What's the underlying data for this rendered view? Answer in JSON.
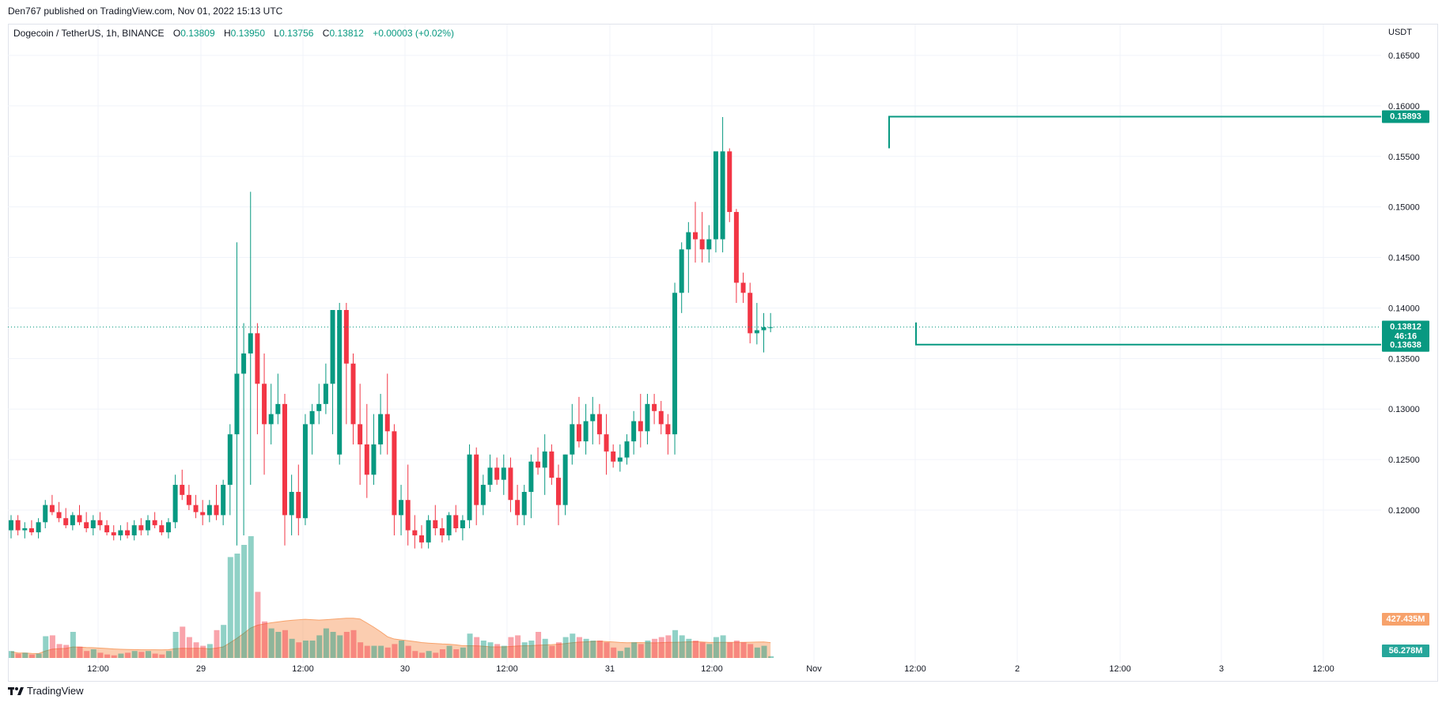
{
  "header": {
    "publisher": "Den767 published on TradingView.com, Nov 01, 2022 15:13 UTC"
  },
  "legend": {
    "symbol": "Dogecoin / TetherUS, 1h, BINANCE",
    "o_label": "O",
    "o": "0.13809",
    "h_label": "H",
    "h": "0.13950",
    "l_label": "L",
    "l": "0.13756",
    "c_label": "C",
    "c": "0.13812",
    "change": "+0.00003 (+0.02%)"
  },
  "axis": {
    "currency": "USDT",
    "price_ticks": [
      "0.16500",
      "0.16000",
      "0.15500",
      "0.15000",
      "0.14500",
      "0.14000",
      "0.13500",
      "0.13000",
      "0.12500",
      "0.12000"
    ],
    "time_ticks": [
      "12:00",
      "29",
      "12:00",
      "30",
      "12:00",
      "31",
      "12:00",
      "Nov",
      "12:00",
      "2",
      "12:00",
      "3",
      "12:00"
    ]
  },
  "badges": {
    "resistance": "0.15893",
    "current_price": "0.13812",
    "countdown": "46:16",
    "support": "0.13638",
    "volume_ma": "427.435M",
    "volume": "56.278M"
  },
  "footer": {
    "brand": "TradingView"
  },
  "colors": {
    "up": "#089981",
    "down": "#f23645",
    "volume_ma": "#f7c9a6",
    "line": "#089981",
    "grid": "#f0f3fa"
  },
  "chart_data": {
    "type": "candlestick",
    "timeframe": "1h",
    "ylim": [
      0.119,
      0.1685
    ],
    "levels": [
      {
        "name": "resistance",
        "value": 0.15893
      },
      {
        "name": "support",
        "value": 0.13638
      }
    ],
    "current_price": 0.13812,
    "candles_ohlc_volume_m": [
      [
        0.118,
        0.1195,
        0.1172,
        0.119,
        40
      ],
      [
        0.119,
        0.1195,
        0.1175,
        0.118,
        25
      ],
      [
        0.118,
        0.1188,
        0.1172,
        0.1182,
        30
      ],
      [
        0.1182,
        0.119,
        0.1175,
        0.1178,
        20
      ],
      [
        0.1178,
        0.1192,
        0.1172,
        0.1188,
        25
      ],
      [
        0.1188,
        0.121,
        0.1182,
        0.1205,
        125
      ],
      [
        0.1205,
        0.1215,
        0.1195,
        0.1198,
        130
      ],
      [
        0.1198,
        0.1208,
        0.1188,
        0.1192,
        80
      ],
      [
        0.1192,
        0.1202,
        0.1182,
        0.1185,
        75
      ],
      [
        0.1185,
        0.1198,
        0.118,
        0.1195,
        150
      ],
      [
        0.1195,
        0.1205,
        0.1185,
        0.1188,
        65
      ],
      [
        0.1188,
        0.1198,
        0.1178,
        0.1182,
        40
      ],
      [
        0.1182,
        0.1195,
        0.1175,
        0.119,
        50
      ],
      [
        0.119,
        0.1198,
        0.118,
        0.1185,
        30
      ],
      [
        0.1185,
        0.119,
        0.1175,
        0.1178,
        20
      ],
      [
        0.1178,
        0.1185,
        0.117,
        0.1175,
        15
      ],
      [
        0.1175,
        0.1185,
        0.117,
        0.118,
        25
      ],
      [
        0.118,
        0.1188,
        0.1172,
        0.1175,
        30
      ],
      [
        0.1175,
        0.119,
        0.117,
        0.1185,
        40
      ],
      [
        0.1185,
        0.1192,
        0.1175,
        0.118,
        35
      ],
      [
        0.118,
        0.1195,
        0.1175,
        0.119,
        40
      ],
      [
        0.119,
        0.1198,
        0.1182,
        0.1185,
        25
      ],
      [
        0.1185,
        0.119,
        0.1175,
        0.1178,
        20
      ],
      [
        0.1178,
        0.1192,
        0.1172,
        0.1188,
        40
      ],
      [
        0.1188,
        0.1235,
        0.1182,
        0.1225,
        150
      ],
      [
        0.1225,
        0.124,
        0.121,
        0.1215,
        180
      ],
      [
        0.1215,
        0.1225,
        0.12,
        0.1205,
        120
      ],
      [
        0.1205,
        0.1215,
        0.1192,
        0.1198,
        90
      ],
      [
        0.1198,
        0.121,
        0.1185,
        0.1195,
        70
      ],
      [
        0.1195,
        0.121,
        0.1188,
        0.1205,
        80
      ],
      [
        0.1205,
        0.1225,
        0.119,
        0.1195,
        160
      ],
      [
        0.1195,
        0.123,
        0.1185,
        0.1225,
        190
      ],
      [
        0.1225,
        0.1285,
        0.1195,
        0.1275,
        580
      ],
      [
        0.1275,
        0.1465,
        0.1165,
        0.1335,
        600
      ],
      [
        0.1335,
        0.1385,
        0.1175,
        0.1355,
        650
      ],
      [
        0.1355,
        0.1515,
        0.1225,
        0.1375,
        700
      ],
      [
        0.1375,
        0.1385,
        0.1275,
        0.1325,
        380
      ],
      [
        0.1325,
        0.1355,
        0.1235,
        0.1285,
        210
      ],
      [
        0.1285,
        0.1325,
        0.1265,
        0.1295,
        170
      ],
      [
        0.1295,
        0.1335,
        0.1285,
        0.1305,
        150
      ],
      [
        0.1305,
        0.1315,
        0.1165,
        0.1195,
        160
      ],
      [
        0.1195,
        0.1235,
        0.1175,
        0.1218,
        110
      ],
      [
        0.1218,
        0.1245,
        0.1175,
        0.1192,
        90
      ],
      [
        0.1192,
        0.1295,
        0.1185,
        0.1285,
        100
      ],
      [
        0.1285,
        0.1305,
        0.1255,
        0.1298,
        100
      ],
      [
        0.1298,
        0.1325,
        0.1285,
        0.1305,
        130
      ],
      [
        0.1305,
        0.1345,
        0.1295,
        0.1325,
        170
      ],
      [
        0.1325,
        0.1375,
        0.1275,
        0.1398,
        150
      ],
      [
        0.1255,
        0.1405,
        0.1245,
        0.1398,
        130
      ],
      [
        0.1398,
        0.1405,
        0.1285,
        0.1345,
        150
      ],
      [
        0.1345,
        0.1355,
        0.1265,
        0.1285,
        160
      ],
      [
        0.1285,
        0.1325,
        0.1225,
        0.1265,
        90
      ],
      [
        0.1265,
        0.1305,
        0.1212,
        0.1235,
        70
      ],
      [
        0.1235,
        0.1295,
        0.1225,
        0.1265,
        70
      ],
      [
        0.1265,
        0.1315,
        0.1255,
        0.1295,
        70
      ],
      [
        0.1295,
        0.1335,
        0.1255,
        0.1278,
        60
      ],
      [
        0.1278,
        0.1285,
        0.1175,
        0.1195,
        80
      ],
      [
        0.1195,
        0.1225,
        0.1175,
        0.121,
        100
      ],
      [
        0.121,
        0.1245,
        0.1165,
        0.118,
        70
      ],
      [
        0.118,
        0.1195,
        0.1162,
        0.1175,
        40
      ],
      [
        0.1175,
        0.1185,
        0.1162,
        0.1168,
        30
      ],
      [
        0.1168,
        0.1195,
        0.1162,
        0.119,
        40
      ],
      [
        0.119,
        0.1205,
        0.1175,
        0.1182,
        30
      ],
      [
        0.1182,
        0.1192,
        0.1168,
        0.1175,
        50
      ],
      [
        0.1175,
        0.1198,
        0.117,
        0.1195,
        70
      ],
      [
        0.1195,
        0.1205,
        0.1178,
        0.1182,
        50
      ],
      [
        0.1182,
        0.1195,
        0.117,
        0.119,
        60
      ],
      [
        0.119,
        0.1265,
        0.1182,
        0.1255,
        140
      ],
      [
        0.1255,
        0.1262,
        0.1185,
        0.1205,
        120
      ],
      [
        0.1205,
        0.1235,
        0.1195,
        0.1225,
        100
      ],
      [
        0.1225,
        0.1255,
        0.1218,
        0.1242,
        90
      ],
      [
        0.1242,
        0.1252,
        0.1225,
        0.123,
        80
      ],
      [
        0.123,
        0.1255,
        0.1215,
        0.1242,
        70
      ],
      [
        0.1242,
        0.1252,
        0.1198,
        0.121,
        120
      ],
      [
        0.121,
        0.1225,
        0.1185,
        0.1195,
        130
      ],
      [
        0.1195,
        0.1225,
        0.1185,
        0.1218,
        90
      ],
      [
        0.1218,
        0.1255,
        0.1192,
        0.1248,
        100
      ],
      [
        0.1248,
        0.1262,
        0.1235,
        0.1242,
        150
      ],
      [
        0.1242,
        0.1275,
        0.1215,
        0.1258,
        110
      ],
      [
        0.1258,
        0.1265,
        0.1225,
        0.1232,
        70
      ],
      [
        0.1232,
        0.1245,
        0.1185,
        0.1205,
        90
      ],
      [
        0.1205,
        0.1255,
        0.1195,
        0.1255,
        120
      ],
      [
        0.1255,
        0.1305,
        0.1245,
        0.1285,
        140
      ],
      [
        0.1285,
        0.1312,
        0.1262,
        0.1268,
        120
      ],
      [
        0.1268,
        0.1305,
        0.1255,
        0.1288,
        110
      ],
      [
        0.1288,
        0.1312,
        0.1265,
        0.1295,
        100
      ],
      [
        0.1295,
        0.1305,
        0.1265,
        0.1275,
        100
      ],
      [
        0.1275,
        0.1295,
        0.1235,
        0.1258,
        90
      ],
      [
        0.1258,
        0.1265,
        0.1242,
        0.1248,
        60
      ],
      [
        0.1248,
        0.1265,
        0.1238,
        0.1252,
        40
      ],
      [
        0.1252,
        0.1275,
        0.1245,
        0.1268,
        60
      ],
      [
        0.1268,
        0.1298,
        0.1255,
        0.1288,
        90
      ],
      [
        0.1288,
        0.1315,
        0.1262,
        0.1278,
        80
      ],
      [
        0.1278,
        0.1315,
        0.1265,
        0.1305,
        100
      ],
      [
        0.1305,
        0.1315,
        0.1285,
        0.1298,
        110
      ],
      [
        0.1298,
        0.1308,
        0.1275,
        0.1285,
        120
      ],
      [
        0.1285,
        0.1295,
        0.1255,
        0.1275,
        130
      ],
      [
        0.1275,
        0.1425,
        0.1255,
        0.1415,
        160
      ],
      [
        0.1415,
        0.1465,
        0.1395,
        0.1458,
        130
      ],
      [
        0.1458,
        0.1485,
        0.1415,
        0.1475,
        110
      ],
      [
        0.1475,
        0.1505,
        0.1445,
        0.1468,
        100
      ],
      [
        0.1468,
        0.1495,
        0.1445,
        0.1458,
        90
      ],
      [
        0.1458,
        0.1482,
        0.1445,
        0.1468,
        80
      ],
      [
        0.1468,
        0.1495,
        0.1455,
        0.1555,
        120
      ],
      [
        0.1468,
        0.1589,
        0.1455,
        0.1555,
        130
      ],
      [
        0.1555,
        0.1558,
        0.1485,
        0.1495,
        90
      ],
      [
        0.1495,
        0.1498,
        0.1405,
        0.1425,
        100
      ],
      [
        0.1425,
        0.1435,
        0.1405,
        0.1415,
        90
      ],
      [
        0.1415,
        0.1425,
        0.1365,
        0.1375,
        80
      ],
      [
        0.1375,
        0.1405,
        0.1364,
        0.1378,
        60
      ],
      [
        0.1378,
        0.1395,
        0.1356,
        0.1381,
        70
      ],
      [
        0.1381,
        0.1395,
        0.1376,
        0.1381,
        10
      ]
    ]
  }
}
